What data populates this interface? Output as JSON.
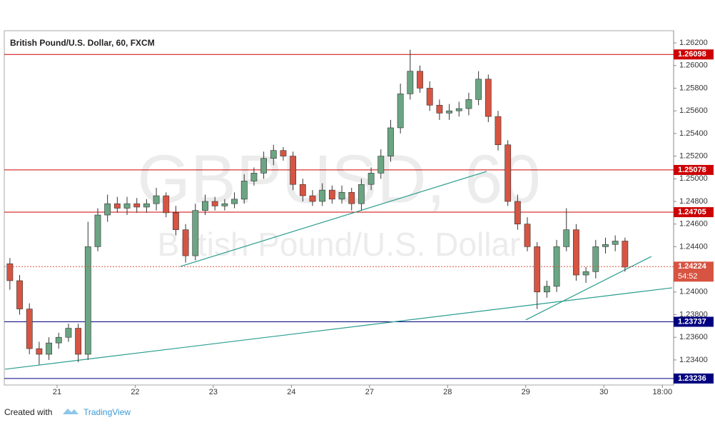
{
  "chart_data": {
    "type": "candlestick",
    "title": "British Pound/U.S. Dollar, 60, FXCM",
    "watermark": "GBPUSD, 60",
    "watermark_subtitle": "British Pound/U.S. Dollar",
    "footer_prefix": "Created with",
    "footer_brand": "TradingView",
    "up_color": "#6ba583",
    "down_color": "#d75442",
    "xlim": [
      0,
      205
    ],
    "xticks": [
      {
        "value": 16,
        "label": "21"
      },
      {
        "value": 40,
        "label": "22"
      },
      {
        "value": 64,
        "label": "23"
      },
      {
        "value": 88,
        "label": "24"
      },
      {
        "value": 112,
        "label": "27"
      },
      {
        "value": 136,
        "label": "28"
      },
      {
        "value": 160,
        "label": "29"
      },
      {
        "value": 184,
        "label": "30"
      },
      {
        "value": 202,
        "label": "18:00"
      }
    ],
    "ylim": [
      1.23185,
      1.26295
    ],
    "yticks": [
      {
        "value": 1.262,
        "label": "1.26200"
      },
      {
        "value": 1.26,
        "label": "1.26000"
      },
      {
        "value": 1.258,
        "label": "1.25800"
      },
      {
        "value": 1.256,
        "label": "1.25600"
      },
      {
        "value": 1.254,
        "label": "1.25400"
      },
      {
        "value": 1.252,
        "label": "1.25200"
      },
      {
        "value": 1.25,
        "label": "1.25000"
      },
      {
        "value": 1.248,
        "label": "1.24800"
      },
      {
        "value": 1.246,
        "label": "1.24600"
      },
      {
        "value": 1.244,
        "label": "1.24400"
      },
      {
        "value": 1.24,
        "label": "1.24000"
      },
      {
        "value": 1.238,
        "label": "1.23800"
      },
      {
        "value": 1.236,
        "label": "1.23600"
      },
      {
        "value": 1.234,
        "label": "1.23400"
      }
    ],
    "x": [
      0,
      3,
      6,
      9,
      12,
      15,
      18,
      21,
      24,
      27,
      30,
      33,
      36,
      39,
      42,
      45,
      48,
      51,
      54,
      57,
      60,
      63,
      66,
      69,
      72,
      75,
      78,
      81,
      84,
      87,
      90,
      93,
      96,
      99,
      102,
      105,
      108,
      111,
      114,
      117,
      120,
      123,
      126,
      129,
      132,
      135,
      138,
      141,
      144,
      147,
      150,
      153,
      156,
      159,
      162,
      165,
      168,
      171,
      174,
      177,
      180,
      183,
      186,
      189
    ],
    "open": [
      1.2425,
      1.241,
      1.2385,
      1.235,
      1.2345,
      1.2355,
      1.236,
      1.2368,
      1.2345,
      1.244,
      1.2468,
      1.2478,
      1.2474,
      1.2478,
      1.2475,
      1.2478,
      1.2485,
      1.247,
      1.2455,
      1.2432,
      1.2472,
      1.248,
      1.2476,
      1.2478,
      1.2482,
      1.2498,
      1.2505,
      1.2518,
      1.2525,
      1.252,
      1.2495,
      1.2485,
      1.248,
      1.249,
      1.2482,
      1.2488,
      1.2478,
      1.2495,
      1.2505,
      1.252,
      1.2545,
      1.2575,
      1.2595,
      1.258,
      1.2565,
      1.2558,
      1.256,
      1.2562,
      1.257,
      1.2588,
      1.2555,
      1.253,
      1.248,
      1.246,
      1.244,
      1.24,
      1.2405,
      1.244,
      1.2455,
      1.2415,
      1.2418,
      1.244,
      1.2442,
      1.2445
    ],
    "high": [
      1.243,
      1.2415,
      1.239,
      1.2356,
      1.236,
      1.2364,
      1.2372,
      1.2372,
      1.2462,
      1.2474,
      1.2486,
      1.2484,
      1.2484,
      1.2483,
      1.2482,
      1.2492,
      1.2488,
      1.2476,
      1.246,
      1.2478,
      1.2486,
      1.2484,
      1.2482,
      1.2488,
      1.2504,
      1.251,
      1.2524,
      1.253,
      1.2528,
      1.2524,
      1.25,
      1.249,
      1.2496,
      1.2494,
      1.2494,
      1.2492,
      1.25,
      1.251,
      1.2526,
      1.2552,
      1.2584,
      1.2614,
      1.26,
      1.2586,
      1.257,
      1.2566,
      1.2568,
      1.2576,
      1.2595,
      1.2592,
      1.256,
      1.2534,
      1.2486,
      1.2466,
      1.2444,
      1.241,
      1.2446,
      1.2474,
      1.246,
      1.2422,
      1.2446,
      1.2448,
      1.245,
      1.2448
    ],
    "low": [
      1.2402,
      1.238,
      1.2345,
      1.2336,
      1.234,
      1.235,
      1.2356,
      1.2338,
      1.234,
      1.2436,
      1.2462,
      1.247,
      1.2468,
      1.247,
      1.247,
      1.2472,
      1.2466,
      1.245,
      1.2426,
      1.2428,
      1.2468,
      1.2472,
      1.2472,
      1.2474,
      1.2478,
      1.2494,
      1.25,
      1.2512,
      1.2516,
      1.249,
      1.248,
      1.2476,
      1.2476,
      1.2478,
      1.2478,
      1.2472,
      1.2472,
      1.249,
      1.25,
      1.2515,
      1.254,
      1.257,
      1.2576,
      1.256,
      1.2552,
      1.2552,
      1.2555,
      1.2556,
      1.2565,
      1.255,
      1.2525,
      1.2476,
      1.2455,
      1.2436,
      1.2385,
      1.2395,
      1.24,
      1.2436,
      1.241,
      1.2408,
      1.2412,
      1.2434,
      1.2436,
      1.2418
    ],
    "close": [
      1.241,
      1.2385,
      1.235,
      1.2345,
      1.2355,
      1.236,
      1.2368,
      1.2345,
      1.244,
      1.2468,
      1.2478,
      1.2474,
      1.2478,
      1.2475,
      1.2478,
      1.2485,
      1.247,
      1.2455,
      1.2432,
      1.2472,
      1.248,
      1.2476,
      1.2478,
      1.2482,
      1.2498,
      1.2505,
      1.2518,
      1.2525,
      1.252,
      1.2495,
      1.2485,
      1.248,
      1.249,
      1.2482,
      1.2488,
      1.2478,
      1.2495,
      1.2505,
      1.252,
      1.2545,
      1.2575,
      1.2595,
      1.258,
      1.2565,
      1.2558,
      1.256,
      1.2562,
      1.257,
      1.2588,
      1.2555,
      1.253,
      1.248,
      1.246,
      1.244,
      1.24,
      1.2405,
      1.244,
      1.2455,
      1.2415,
      1.2418,
      1.244,
      1.2442,
      1.2445,
      1.2422
    ],
    "levels": [
      {
        "value": 1.26098,
        "color": "#cc0000"
      },
      {
        "value": 1.25078,
        "color": "#cc0000"
      },
      {
        "value": 1.24705,
        "color": "#cc0000"
      },
      {
        "value": 1.23737,
        "color": "#000080"
      },
      {
        "value": 1.23236,
        "color": "#000080"
      }
    ],
    "last_price": 1.24224,
    "last_price_color": "#d75442",
    "countdown": "54:52",
    "trendline_color": "#2a9d8f",
    "trendlines": [
      {
        "x": [
          53.9,
          148
        ],
        "y": [
          1.24226,
          1.25065
        ]
      },
      {
        "x": [
          0,
          205
        ],
        "y": [
          1.23318,
          1.24037
        ]
      },
      {
        "x": [
          160,
          198.6
        ],
        "y": [
          1.23753,
          1.24314
        ]
      }
    ]
  }
}
